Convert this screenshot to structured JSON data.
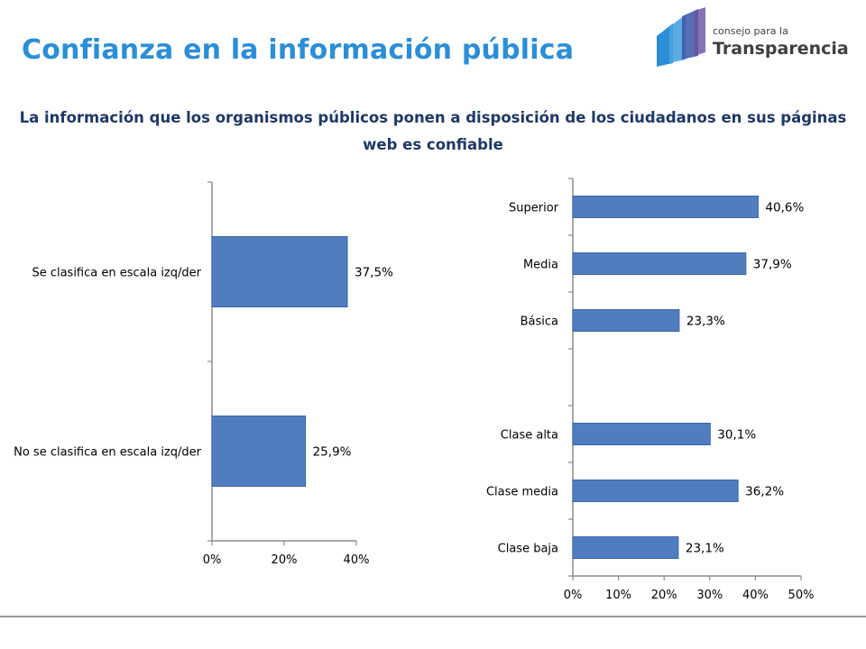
{
  "slide": {
    "title": "Confianza en la información pública",
    "subtitle": "La información que los organismos públicos ponen a disposición de los ciudadanos en sus páginas web es confiable",
    "logo_small": "consejo para la",
    "logo_large": "Transparencia"
  },
  "colors": {
    "bar": "#4f7dbf",
    "bar_edge": "#3a66a6",
    "title": "#2b8ed6",
    "subtitle": "#1f3864",
    "axis": "#8c8c8c"
  },
  "chart_data": [
    {
      "type": "bar",
      "orientation": "horizontal",
      "categories": [
        "Se clasifica en escala izq/der",
        "No se clasifica en escala izq/der"
      ],
      "values": [
        37.5,
        25.9
      ],
      "value_labels": [
        "37,5%",
        "25,9%"
      ],
      "xlim": [
        0,
        40
      ],
      "xticks": [
        "0%",
        "20%",
        "40%"
      ],
      "grid": false
    },
    {
      "type": "bar",
      "orientation": "horizontal",
      "categories": [
        "Superior",
        "Media",
        "Básica",
        "",
        "Clase alta",
        "Clase media",
        "Clase baja"
      ],
      "values": [
        40.6,
        37.9,
        23.3,
        null,
        30.1,
        36.2,
        23.1
      ],
      "value_labels": [
        "40,6%",
        "37,9%",
        "23,3%",
        "",
        "30,1%",
        "36,2%",
        "23,1%"
      ],
      "xlim": [
        0,
        50
      ],
      "xticks": [
        "0%",
        "10%",
        "20%",
        "30%",
        "40%",
        "50%"
      ],
      "grid": false
    }
  ]
}
